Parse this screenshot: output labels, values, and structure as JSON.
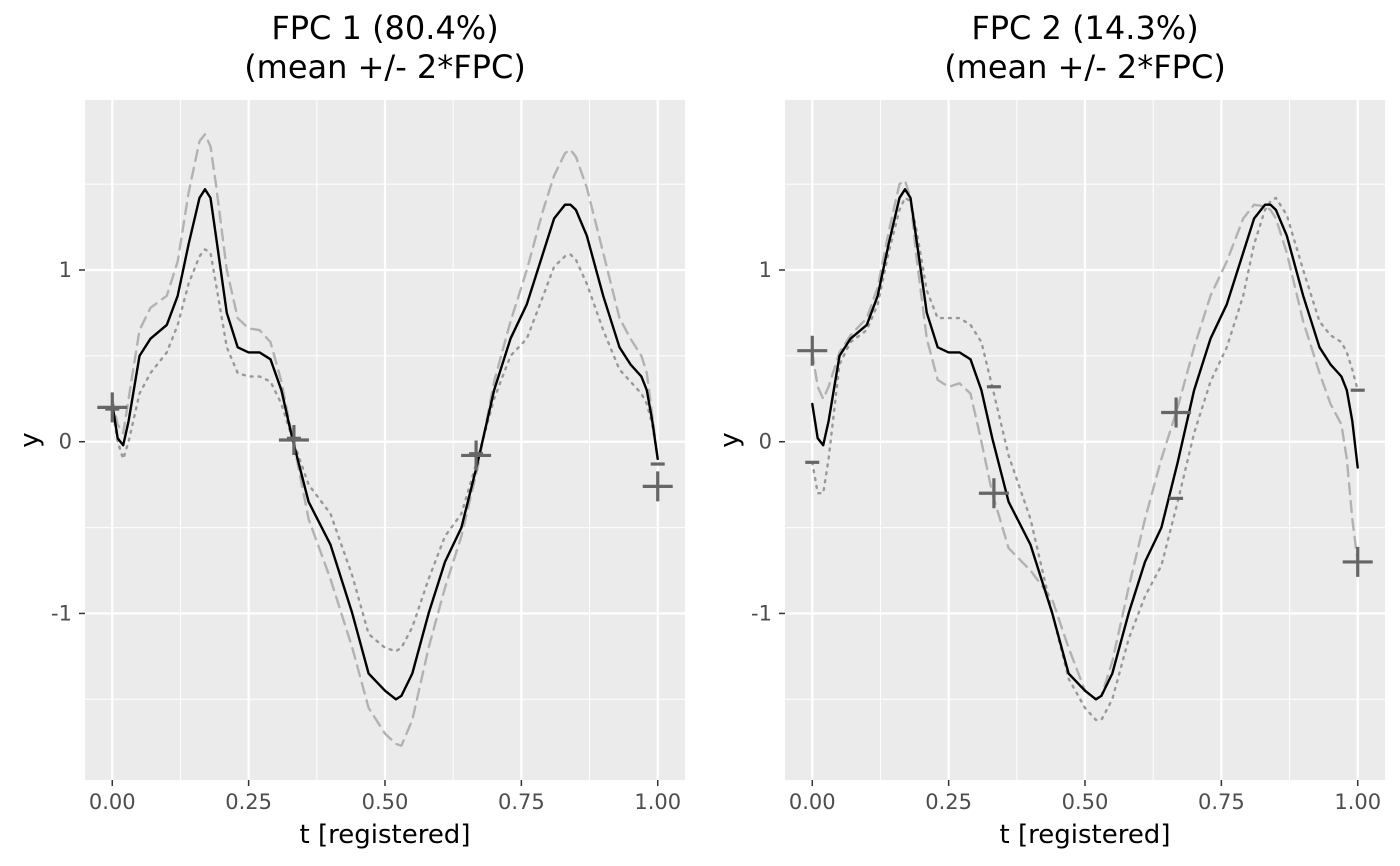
{
  "chart_data": [
    {
      "type": "line",
      "title": "FPC 1 (80.4%)",
      "subtitle": "(mean +/- 2*FPC)",
      "xlabel": "t [registered]",
      "ylabel": "y",
      "xlim": [
        -0.05,
        1.05
      ],
      "ylim": [
        -1.97,
        1.99
      ],
      "x_ticks": [
        0.0,
        0.25,
        0.5,
        0.75,
        1.0
      ],
      "x_tick_labels": [
        "0.00",
        "0.25",
        "0.50",
        "0.75",
        "1.00"
      ],
      "y_ticks": [
        -1,
        0,
        1
      ],
      "y_tick_labels": [
        "-1",
        "0",
        "1"
      ],
      "grid": true,
      "legend": "none",
      "series": [
        {
          "style": "solid",
          "color": "#000000",
          "x": [
            0.0,
            0.01,
            0.02,
            0.03,
            0.05,
            0.07,
            0.1,
            0.12,
            0.14,
            0.16,
            0.17,
            0.18,
            0.19,
            0.21,
            0.23,
            0.25,
            0.27,
            0.29,
            0.31,
            0.33,
            0.36,
            0.4,
            0.44,
            0.47,
            0.5,
            0.52,
            0.53,
            0.55,
            0.58,
            0.61,
            0.64,
            0.67,
            0.7,
            0.73,
            0.76,
            0.79,
            0.81,
            0.83,
            0.84,
            0.85,
            0.87,
            0.9,
            0.93,
            0.95,
            0.97,
            0.98,
            0.99,
            1.0
          ],
          "y": [
            0.22,
            0.02,
            -0.02,
            0.12,
            0.5,
            0.6,
            0.68,
            0.85,
            1.15,
            1.42,
            1.47,
            1.42,
            1.2,
            0.75,
            0.55,
            0.52,
            0.52,
            0.48,
            0.3,
            0.02,
            -0.35,
            -0.6,
            -1.0,
            -1.35,
            -1.45,
            -1.5,
            -1.48,
            -1.35,
            -1.0,
            -0.7,
            -0.5,
            -0.12,
            0.3,
            0.6,
            0.8,
            1.1,
            1.3,
            1.38,
            1.38,
            1.35,
            1.2,
            0.85,
            0.55,
            0.45,
            0.38,
            0.3,
            0.12,
            -0.1
          ]
        },
        {
          "style": "dashed",
          "color": "#b2b2b2",
          "x": [
            0.0,
            0.01,
            0.02,
            0.03,
            0.05,
            0.07,
            0.1,
            0.12,
            0.14,
            0.16,
            0.17,
            0.18,
            0.19,
            0.21,
            0.23,
            0.25,
            0.27,
            0.29,
            0.31,
            0.33,
            0.36,
            0.4,
            0.44,
            0.47,
            0.5,
            0.52,
            0.53,
            0.55,
            0.58,
            0.61,
            0.64,
            0.67,
            0.7,
            0.73,
            0.76,
            0.79,
            0.81,
            0.83,
            0.84,
            0.85,
            0.87,
            0.9,
            0.93,
            0.95,
            0.97,
            0.98,
            0.99,
            1.0
          ],
          "y": [
            0.25,
            0.1,
            0.05,
            0.25,
            0.65,
            0.78,
            0.85,
            1.05,
            1.45,
            1.75,
            1.79,
            1.72,
            1.5,
            1.0,
            0.72,
            0.66,
            0.65,
            0.58,
            0.35,
            0.03,
            -0.45,
            -0.8,
            -1.2,
            -1.55,
            -1.7,
            -1.76,
            -1.77,
            -1.62,
            -1.2,
            -0.85,
            -0.55,
            -0.15,
            0.35,
            0.7,
            1.0,
            1.35,
            1.55,
            1.68,
            1.7,
            1.66,
            1.48,
            1.1,
            0.72,
            0.6,
            0.5,
            0.4,
            0.15,
            -0.1
          ]
        },
        {
          "style": "dotted",
          "color": "#999999",
          "x": [
            0.0,
            0.01,
            0.02,
            0.03,
            0.05,
            0.07,
            0.1,
            0.12,
            0.14,
            0.16,
            0.17,
            0.18,
            0.19,
            0.21,
            0.23,
            0.25,
            0.27,
            0.29,
            0.31,
            0.33,
            0.36,
            0.4,
            0.44,
            0.47,
            0.5,
            0.52,
            0.53,
            0.55,
            0.58,
            0.61,
            0.64,
            0.67,
            0.7,
            0.73,
            0.76,
            0.79,
            0.81,
            0.83,
            0.84,
            0.85,
            0.87,
            0.9,
            0.93,
            0.95,
            0.97,
            0.98,
            0.99,
            1.0
          ],
          "y": [
            0.2,
            0.0,
            -0.1,
            0.0,
            0.28,
            0.4,
            0.52,
            0.68,
            0.92,
            1.08,
            1.12,
            1.1,
            0.92,
            0.55,
            0.4,
            0.38,
            0.38,
            0.35,
            0.22,
            0.02,
            -0.25,
            -0.42,
            -0.78,
            -1.12,
            -1.2,
            -1.22,
            -1.2,
            -1.08,
            -0.8,
            -0.55,
            -0.42,
            -0.1,
            0.25,
            0.5,
            0.6,
            0.85,
            1.02,
            1.08,
            1.09,
            1.06,
            0.92,
            0.65,
            0.42,
            0.35,
            0.28,
            0.22,
            0.1,
            -0.1
          ]
        }
      ],
      "markers": {
        "plus": {
          "x": [
            0.0,
            0.333,
            0.667,
            1.0
          ],
          "y": [
            0.2,
            0.01,
            -0.08,
            -0.26
          ]
        },
        "minus": {
          "x": [
            0.0,
            0.333,
            0.667,
            1.0
          ],
          "y": [
            0.19,
            0.02,
            -0.07,
            -0.13
          ]
        }
      }
    },
    {
      "type": "line",
      "title": "FPC 2 (14.3%)",
      "subtitle": "(mean +/- 2*FPC)",
      "xlabel": "t [registered]",
      "ylabel": "y",
      "xlim": [
        -0.05,
        1.05
      ],
      "ylim": [
        -1.97,
        1.99
      ],
      "x_ticks": [
        0.0,
        0.25,
        0.5,
        0.75,
        1.0
      ],
      "x_tick_labels": [
        "0.00",
        "0.25",
        "0.50",
        "0.75",
        "1.00"
      ],
      "y_ticks": [
        -1,
        0,
        1
      ],
      "y_tick_labels": [
        "-1",
        "0",
        "1"
      ],
      "grid": true,
      "legend": "none",
      "series": [
        {
          "style": "solid",
          "color": "#000000",
          "x": [
            0.0,
            0.01,
            0.02,
            0.03,
            0.05,
            0.07,
            0.1,
            0.12,
            0.14,
            0.16,
            0.17,
            0.18,
            0.19,
            0.21,
            0.23,
            0.25,
            0.27,
            0.29,
            0.31,
            0.33,
            0.36,
            0.4,
            0.44,
            0.47,
            0.5,
            0.52,
            0.53,
            0.55,
            0.58,
            0.61,
            0.64,
            0.67,
            0.7,
            0.73,
            0.76,
            0.79,
            0.81,
            0.83,
            0.84,
            0.85,
            0.87,
            0.9,
            0.93,
            0.95,
            0.97,
            0.98,
            0.99,
            1.0
          ],
          "y": [
            0.22,
            0.02,
            -0.02,
            0.12,
            0.5,
            0.6,
            0.68,
            0.85,
            1.15,
            1.42,
            1.47,
            1.42,
            1.2,
            0.75,
            0.55,
            0.52,
            0.52,
            0.48,
            0.3,
            0.02,
            -0.35,
            -0.6,
            -1.0,
            -1.35,
            -1.45,
            -1.5,
            -1.48,
            -1.35,
            -1.0,
            -0.7,
            -0.5,
            -0.12,
            0.3,
            0.6,
            0.8,
            1.1,
            1.3,
            1.38,
            1.38,
            1.35,
            1.2,
            0.85,
            0.55,
            0.45,
            0.38,
            0.3,
            0.12,
            -0.15
          ]
        },
        {
          "style": "dashed",
          "color": "#b2b2b2",
          "x": [
            0.0,
            0.01,
            0.02,
            0.03,
            0.05,
            0.07,
            0.1,
            0.12,
            0.14,
            0.16,
            0.17,
            0.18,
            0.19,
            0.21,
            0.23,
            0.25,
            0.27,
            0.29,
            0.31,
            0.33,
            0.36,
            0.4,
            0.44,
            0.47,
            0.5,
            0.52,
            0.53,
            0.55,
            0.58,
            0.61,
            0.64,
            0.67,
            0.7,
            0.73,
            0.76,
            0.79,
            0.81,
            0.83,
            0.84,
            0.85,
            0.87,
            0.9,
            0.93,
            0.95,
            0.97,
            0.98,
            0.99,
            1.0
          ],
          "y": [
            0.52,
            0.32,
            0.25,
            0.32,
            0.52,
            0.62,
            0.72,
            0.9,
            1.22,
            1.5,
            1.52,
            1.42,
            1.1,
            0.6,
            0.36,
            0.32,
            0.34,
            0.28,
            0.0,
            -0.3,
            -0.62,
            -0.75,
            -0.92,
            -1.2,
            -1.45,
            -1.5,
            -1.48,
            -1.28,
            -0.85,
            -0.45,
            -0.1,
            0.2,
            0.55,
            0.85,
            1.05,
            1.3,
            1.38,
            1.37,
            1.35,
            1.3,
            1.1,
            0.7,
            0.4,
            0.22,
            0.1,
            -0.1,
            -0.45,
            -0.7
          ]
        },
        {
          "style": "dotted",
          "color": "#999999",
          "x": [
            0.0,
            0.01,
            0.02,
            0.03,
            0.05,
            0.07,
            0.1,
            0.12,
            0.14,
            0.16,
            0.17,
            0.18,
            0.19,
            0.21,
            0.23,
            0.25,
            0.27,
            0.29,
            0.31,
            0.33,
            0.36,
            0.4,
            0.44,
            0.47,
            0.5,
            0.52,
            0.53,
            0.55,
            0.58,
            0.61,
            0.64,
            0.67,
            0.7,
            0.73,
            0.76,
            0.79,
            0.81,
            0.83,
            0.84,
            0.85,
            0.87,
            0.9,
            0.93,
            0.95,
            0.97,
            0.98,
            0.99,
            1.0
          ],
          "y": [
            -0.12,
            -0.3,
            -0.3,
            -0.1,
            0.45,
            0.58,
            0.65,
            0.8,
            1.1,
            1.35,
            1.42,
            1.4,
            1.25,
            0.88,
            0.72,
            0.72,
            0.72,
            0.68,
            0.58,
            0.32,
            -0.08,
            -0.45,
            -1.0,
            -1.38,
            -1.55,
            -1.62,
            -1.62,
            -1.5,
            -1.15,
            -0.9,
            -0.72,
            -0.35,
            0.05,
            0.35,
            0.55,
            0.85,
            1.15,
            1.35,
            1.4,
            1.42,
            1.32,
            1.0,
            0.7,
            0.62,
            0.58,
            0.52,
            0.42,
            0.3
          ]
        }
      ],
      "markers": {
        "plus": {
          "x": [
            0.0,
            0.333,
            0.667,
            1.0
          ],
          "y": [
            0.53,
            -0.3,
            0.17,
            -0.7
          ]
        },
        "minus": {
          "x": [
            0.0,
            0.333,
            0.667,
            1.0
          ],
          "y": [
            -0.12,
            0.32,
            -0.33,
            0.3
          ]
        }
      }
    }
  ]
}
